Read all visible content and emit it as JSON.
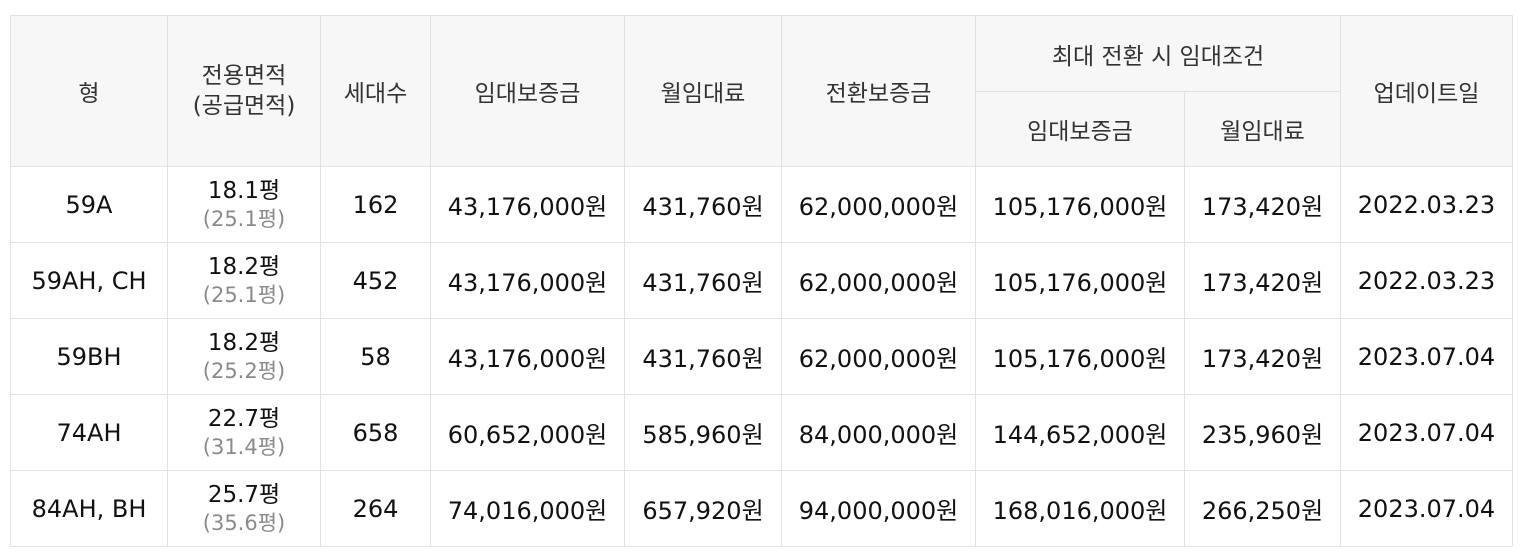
{
  "headers": {
    "type": "형",
    "area_line1": "전용면적",
    "area_line2": "(공급면적)",
    "households": "세대수",
    "deposit": "임대보증금",
    "monthly_rent": "월임대료",
    "conversion_deposit": "전환보증금",
    "max_conversion_group": "최대 전환 시 임대조건",
    "max_deposit": "임대보증금",
    "max_monthly_rent": "월임대료",
    "updated": "업데이트일"
  },
  "rows": [
    {
      "type": "59A",
      "area": "18.1평",
      "supply_area": "(25.1평)",
      "households": "162",
      "deposit": "43,176,000원",
      "monthly_rent": "431,760원",
      "conversion_deposit": "62,000,000원",
      "max_deposit": "105,176,000원",
      "max_monthly_rent": "173,420원",
      "updated": "2022.03.23"
    },
    {
      "type": "59AH, CH",
      "area": "18.2평",
      "supply_area": "(25.1평)",
      "households": "452",
      "deposit": "43,176,000원",
      "monthly_rent": "431,760원",
      "conversion_deposit": "62,000,000원",
      "max_deposit": "105,176,000원",
      "max_monthly_rent": "173,420원",
      "updated": "2022.03.23"
    },
    {
      "type": "59BH",
      "area": "18.2평",
      "supply_area": "(25.2평)",
      "households": "58",
      "deposit": "43,176,000원",
      "monthly_rent": "431,760원",
      "conversion_deposit": "62,000,000원",
      "max_deposit": "105,176,000원",
      "max_monthly_rent": "173,420원",
      "updated": "2023.07.04"
    },
    {
      "type": "74AH",
      "area": "22.7평",
      "supply_area": "(31.4평)",
      "households": "658",
      "deposit": "60,652,000원",
      "monthly_rent": "585,960원",
      "conversion_deposit": "84,000,000원",
      "max_deposit": "144,652,000원",
      "max_monthly_rent": "235,960원",
      "updated": "2023.07.04"
    },
    {
      "type": "84AH, BH",
      "area": "25.7평",
      "supply_area": "(35.6평)",
      "households": "264",
      "deposit": "74,016,000원",
      "monthly_rent": "657,920원",
      "conversion_deposit": "94,000,000원",
      "max_deposit": "168,016,000원",
      "max_monthly_rent": "266,250원",
      "updated": "2023.07.04"
    }
  ]
}
